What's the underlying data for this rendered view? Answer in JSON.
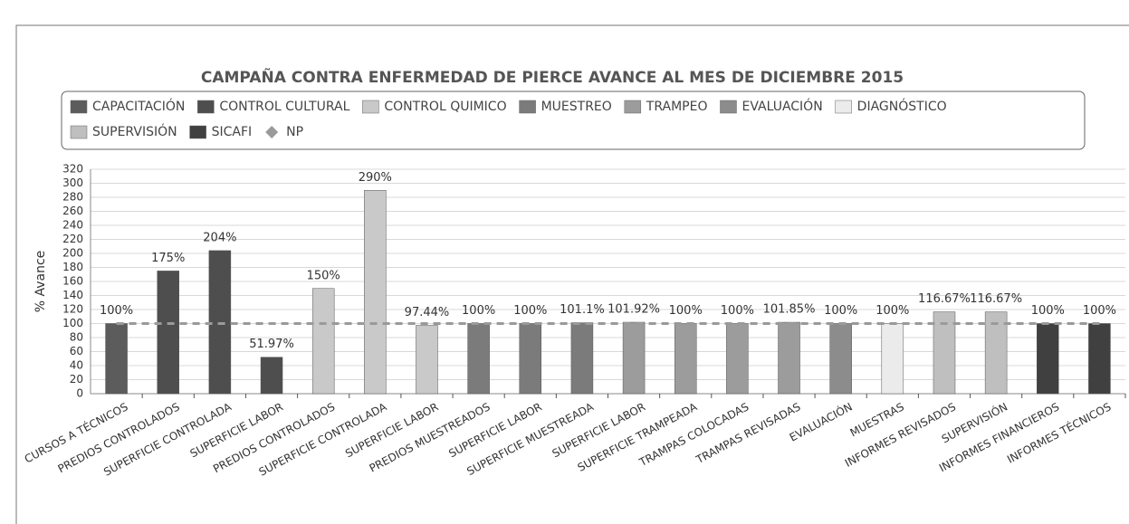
{
  "chart_data": {
    "type": "bar",
    "title": "CAMPAÑA CONTRA ENFERMEDAD DE PIERCE AVANCE AL MES DE DICIEMBRE 2015",
    "y_label": "% Avance",
    "categories": [
      "CURSOS A TÉCNICOS",
      "PREDIOS CONTROLADOS",
      "SUPERFICIE CONTROLADA",
      "SUPERFICIE LABOR",
      "PREDIOS CONTROLADOS",
      "SUPERFICIE CONTROLADA",
      "SUPERFICIE LABOR",
      "PREDIOS MUESTREADOS",
      "SUPERFICIE LABOR",
      "SUPERFICIE MUESTREADA",
      "SUPERFICIE LABOR",
      "SUPERFICIE TRAMPEADA",
      "TRAMPAS COLOCADAS",
      "TRAMPAS REVISADAS",
      "EVALUACIÓN",
      "MUESTRAS",
      "INFORMES REVISADOS",
      "SUPERVISIÓN",
      "INFORMES FINANCIEROS",
      "INFORMES TÉCNICOS"
    ],
    "series": [
      {
        "name": "CAPACITACIÓN",
        "color": "#5c5c5c",
        "values": [
          100,
          null,
          null,
          null,
          null,
          null,
          null,
          null,
          null,
          null,
          null,
          null,
          null,
          null,
          null,
          null,
          null,
          null,
          null,
          null
        ],
        "value_labels": [
          "100%",
          null,
          null,
          null,
          null,
          null,
          null,
          null,
          null,
          null,
          null,
          null,
          null,
          null,
          null,
          null,
          null,
          null,
          null,
          null
        ]
      },
      {
        "name": "CONTROL CULTURAL",
        "color": "#4e4e4e",
        "values": [
          null,
          175,
          204,
          51.97,
          null,
          null,
          null,
          null,
          null,
          null,
          null,
          null,
          null,
          null,
          null,
          null,
          null,
          null,
          null,
          null
        ],
        "value_labels": [
          null,
          "175%",
          "204%",
          "51.97%",
          null,
          null,
          null,
          null,
          null,
          null,
          null,
          null,
          null,
          null,
          null,
          null,
          null,
          null,
          null,
          null
        ]
      },
      {
        "name": "CONTROL QUIMICO",
        "color": "#c9c9c9",
        "values": [
          null,
          null,
          null,
          null,
          150,
          290,
          97.44,
          null,
          null,
          null,
          null,
          null,
          null,
          null,
          null,
          null,
          null,
          null,
          null,
          null
        ],
        "value_labels": [
          null,
          null,
          null,
          null,
          "150%",
          "290%",
          "97.44%",
          null,
          null,
          null,
          null,
          null,
          null,
          null,
          null,
          null,
          null,
          null,
          null,
          null
        ]
      },
      {
        "name": "MUESTREO",
        "color": "#7b7b7b",
        "values": [
          null,
          null,
          null,
          null,
          null,
          null,
          null,
          100,
          100,
          101.1,
          null,
          null,
          null,
          null,
          null,
          null,
          null,
          null,
          null,
          null
        ],
        "value_labels": [
          null,
          null,
          null,
          null,
          null,
          null,
          null,
          "100%",
          "100%",
          "101.1%",
          null,
          null,
          null,
          null,
          null,
          null,
          null,
          null,
          null,
          null
        ]
      },
      {
        "name": "TRAMPEO",
        "color": "#9c9c9c",
        "values": [
          null,
          null,
          null,
          null,
          null,
          null,
          null,
          null,
          null,
          null,
          101.92,
          100,
          100,
          101.85,
          null,
          null,
          null,
          null,
          null,
          null
        ],
        "value_labels": [
          null,
          null,
          null,
          null,
          null,
          null,
          null,
          null,
          null,
          null,
          "101.92%",
          "100%",
          "100%",
          "101.85%",
          null,
          null,
          null,
          null,
          null,
          null
        ]
      },
      {
        "name": "EVALUACIÓN",
        "color": "#8c8c8c",
        "values": [
          null,
          null,
          null,
          null,
          null,
          null,
          null,
          null,
          null,
          null,
          null,
          null,
          null,
          null,
          100,
          null,
          null,
          null,
          null,
          null
        ],
        "value_labels": [
          null,
          null,
          null,
          null,
          null,
          null,
          null,
          null,
          null,
          null,
          null,
          null,
          null,
          null,
          "100%",
          null,
          null,
          null,
          null,
          null
        ]
      },
      {
        "name": "DIAGNÓSTICO",
        "color": "#ebebeb",
        "values": [
          null,
          null,
          null,
          null,
          null,
          null,
          null,
          null,
          null,
          null,
          null,
          null,
          null,
          null,
          null,
          100,
          null,
          null,
          null,
          null
        ],
        "value_labels": [
          null,
          null,
          null,
          null,
          null,
          null,
          null,
          null,
          null,
          null,
          null,
          null,
          null,
          null,
          null,
          "100%",
          null,
          null,
          null,
          null
        ]
      },
      {
        "name": "SUPERVISIÓN",
        "color": "#bfbfbf",
        "values": [
          null,
          null,
          null,
          null,
          null,
          null,
          null,
          null,
          null,
          null,
          null,
          null,
          null,
          null,
          null,
          null,
          116.67,
          116.67,
          null,
          null
        ],
        "value_labels": [
          null,
          null,
          null,
          null,
          null,
          null,
          null,
          null,
          null,
          null,
          null,
          null,
          null,
          null,
          null,
          null,
          "116.67%",
          "116.67%",
          null,
          null
        ]
      },
      {
        "name": "SICAFI",
        "color": "#404040",
        "values": [
          null,
          null,
          null,
          null,
          null,
          null,
          null,
          null,
          null,
          null,
          null,
          null,
          null,
          null,
          null,
          null,
          null,
          null,
          100,
          100
        ],
        "value_labels": [
          null,
          null,
          null,
          null,
          null,
          null,
          null,
          null,
          null,
          null,
          null,
          null,
          null,
          null,
          null,
          null,
          null,
          null,
          "100%",
          "100%"
        ]
      },
      {
        "name": "NP",
        "color": "#9a9a9a",
        "type": "line",
        "values": [
          100,
          100,
          100,
          100,
          100,
          100,
          100,
          100,
          100,
          100,
          100,
          100,
          100,
          100,
          100,
          100,
          100,
          100,
          100,
          100
        ]
      }
    ],
    "ylim": [
      0,
      320
    ],
    "yticks": [
      0,
      20,
      40,
      60,
      80,
      100,
      120,
      140,
      160,
      180,
      200,
      220,
      240,
      260,
      280,
      300,
      320
    ],
    "grid": true
  }
}
